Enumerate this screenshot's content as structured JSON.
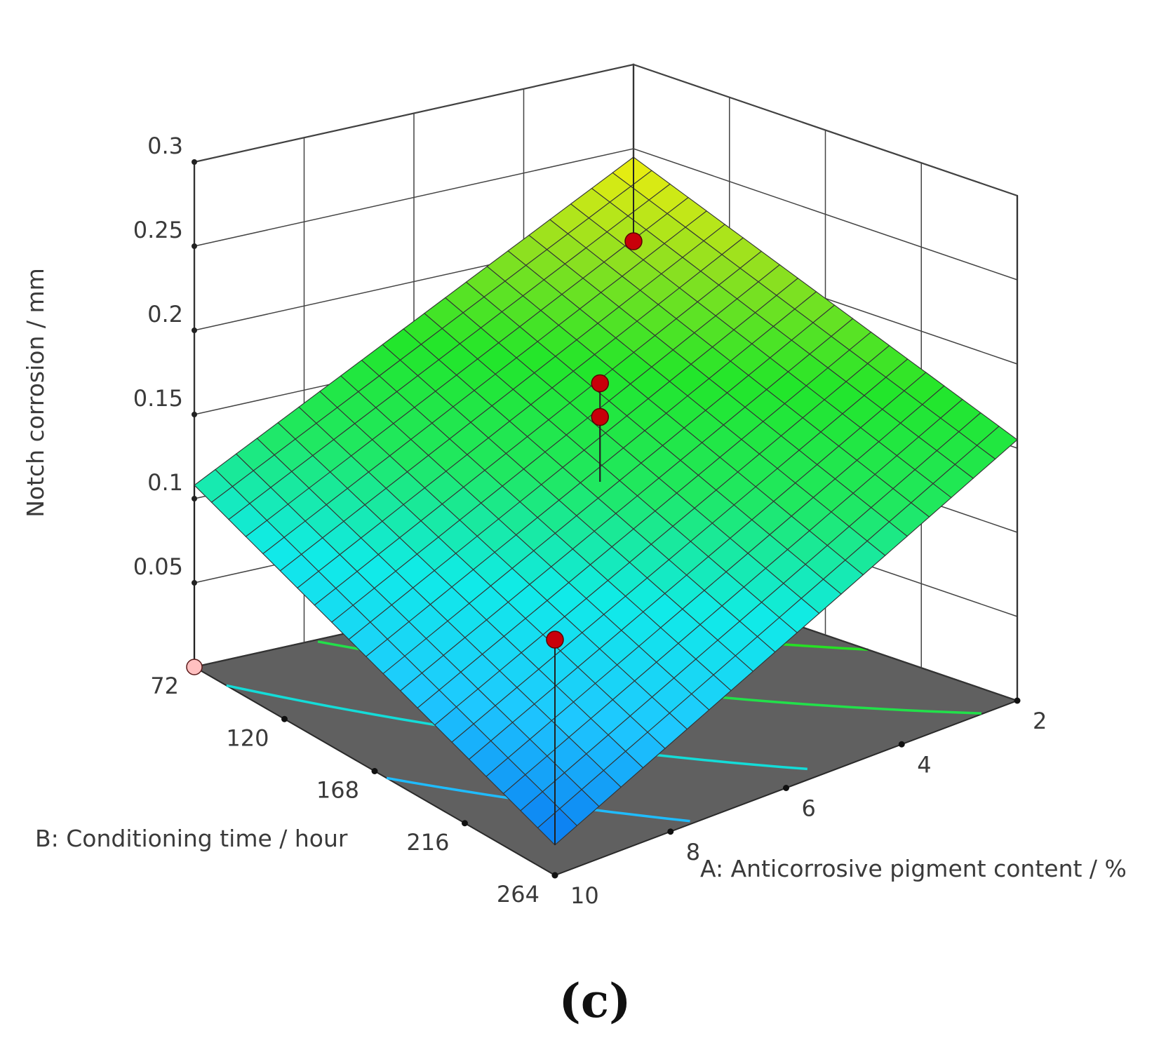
{
  "figure": {
    "panel_label": "(c)"
  },
  "chart_data": {
    "type": "surface",
    "title": "",
    "xlabel": "A: Anticorrosive pigment content / %",
    "ylabel": "B: Conditioning time / hour",
    "zlabel": "Notch corrosion / mm",
    "x_ticks": [
      2,
      4,
      6,
      8,
      10
    ],
    "y_ticks": [
      72,
      120,
      168,
      216,
      264
    ],
    "z_ticks": [
      0.05,
      0.1,
      0.15,
      0.2,
      0.25,
      0.3
    ],
    "z_tick_labels": [
      "0.05",
      "0.1",
      "0.15",
      "0.2",
      "0.25",
      "0.3"
    ],
    "xlim": [
      2,
      10
    ],
    "ylim": [
      72,
      264
    ],
    "zlim": [
      0,
      0.3
    ],
    "grid": true,
    "surface_corners": [
      {
        "x": 2,
        "y": 72,
        "z": 0.245
      },
      {
        "x": 10,
        "y": 72,
        "z": 0.108
      },
      {
        "x": 2,
        "y": 264,
        "z": 0.155
      },
      {
        "x": 10,
        "y": 264,
        "z": 0.018
      }
    ],
    "colormap": [
      "#0a78f0",
      "#1ec8ff",
      "#10ebe8",
      "#20e860",
      "#22e62a",
      "#8ee020",
      "#f2ee10"
    ],
    "floor_color": "#606060",
    "contours": [
      {
        "z": 0.06,
        "color": "#1fbcff"
      },
      {
        "z": 0.1,
        "color": "#14dcd8"
      },
      {
        "z": 0.145,
        "color": "#22e04a"
      },
      {
        "z": 0.19,
        "color": "#26e024"
      },
      {
        "z": 0.225,
        "color": "#c4e818"
      }
    ],
    "design_points": [
      {
        "x": 2,
        "y": 72,
        "z": 0.195,
        "position": "above"
      },
      {
        "x": 10,
        "y": 264,
        "z": 0.14,
        "position": "above"
      },
      {
        "x": 6,
        "y": 168,
        "z": 0.19,
        "position": "above"
      },
      {
        "x": 6,
        "y": 168,
        "z": 0.17,
        "position": "above"
      },
      {
        "x": 10,
        "y": 72,
        "z": 0.0,
        "position": "below"
      }
    ],
    "design_point_color": "#c8000a",
    "below_point_color": "#ffc0c0"
  }
}
